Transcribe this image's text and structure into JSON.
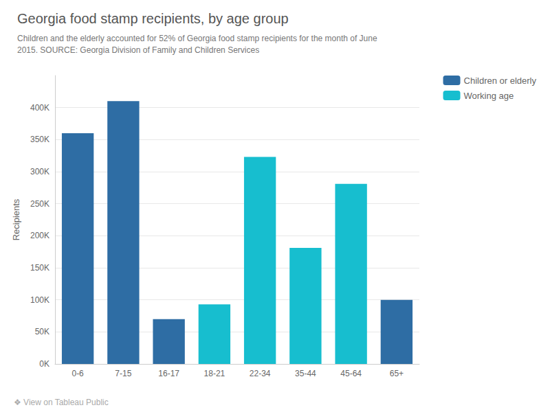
{
  "chart_data": {
    "type": "bar",
    "title": "Georgia food stamp recipients, by age group",
    "subtitle": "Children and the elderly accounted for 52% of Georgia food stamp recipients for the month of June\n2015. SOURCE: Georgia Division of Family and Children Services",
    "annotations": [
      "❖ View on Tableau Public"
    ],
    "ylabel": "Recipients",
    "categories": [
      "0-6",
      "7-15",
      "16-17",
      "18-21",
      "22-34",
      "35-44",
      "45-64",
      "65+"
    ],
    "series": [
      {
        "name": "Children or elderly",
        "color": "#2E6DA4",
        "values": [
          360000,
          410000,
          70000,
          null,
          null,
          null,
          null,
          100000
        ]
      },
      {
        "name": "Working age",
        "color": "#17BECF",
        "values": [
          null,
          null,
          null,
          93000,
          323000,
          181000,
          281000,
          null
        ]
      }
    ],
    "ylim": [
      0,
      450000
    ],
    "yticks": [
      {
        "value": 0,
        "label": "0K"
      },
      {
        "value": 50000,
        "label": "50K"
      },
      {
        "value": 100000,
        "label": "100K"
      },
      {
        "value": 150000,
        "label": "150K"
      },
      {
        "value": 200000,
        "label": "200K"
      },
      {
        "value": 250000,
        "label": "250K"
      },
      {
        "value": 300000,
        "label": "300K"
      },
      {
        "value": 350000,
        "label": "350K"
      },
      {
        "value": 400000,
        "label": "400K"
      }
    ],
    "grid": true,
    "legend": "upper right"
  }
}
